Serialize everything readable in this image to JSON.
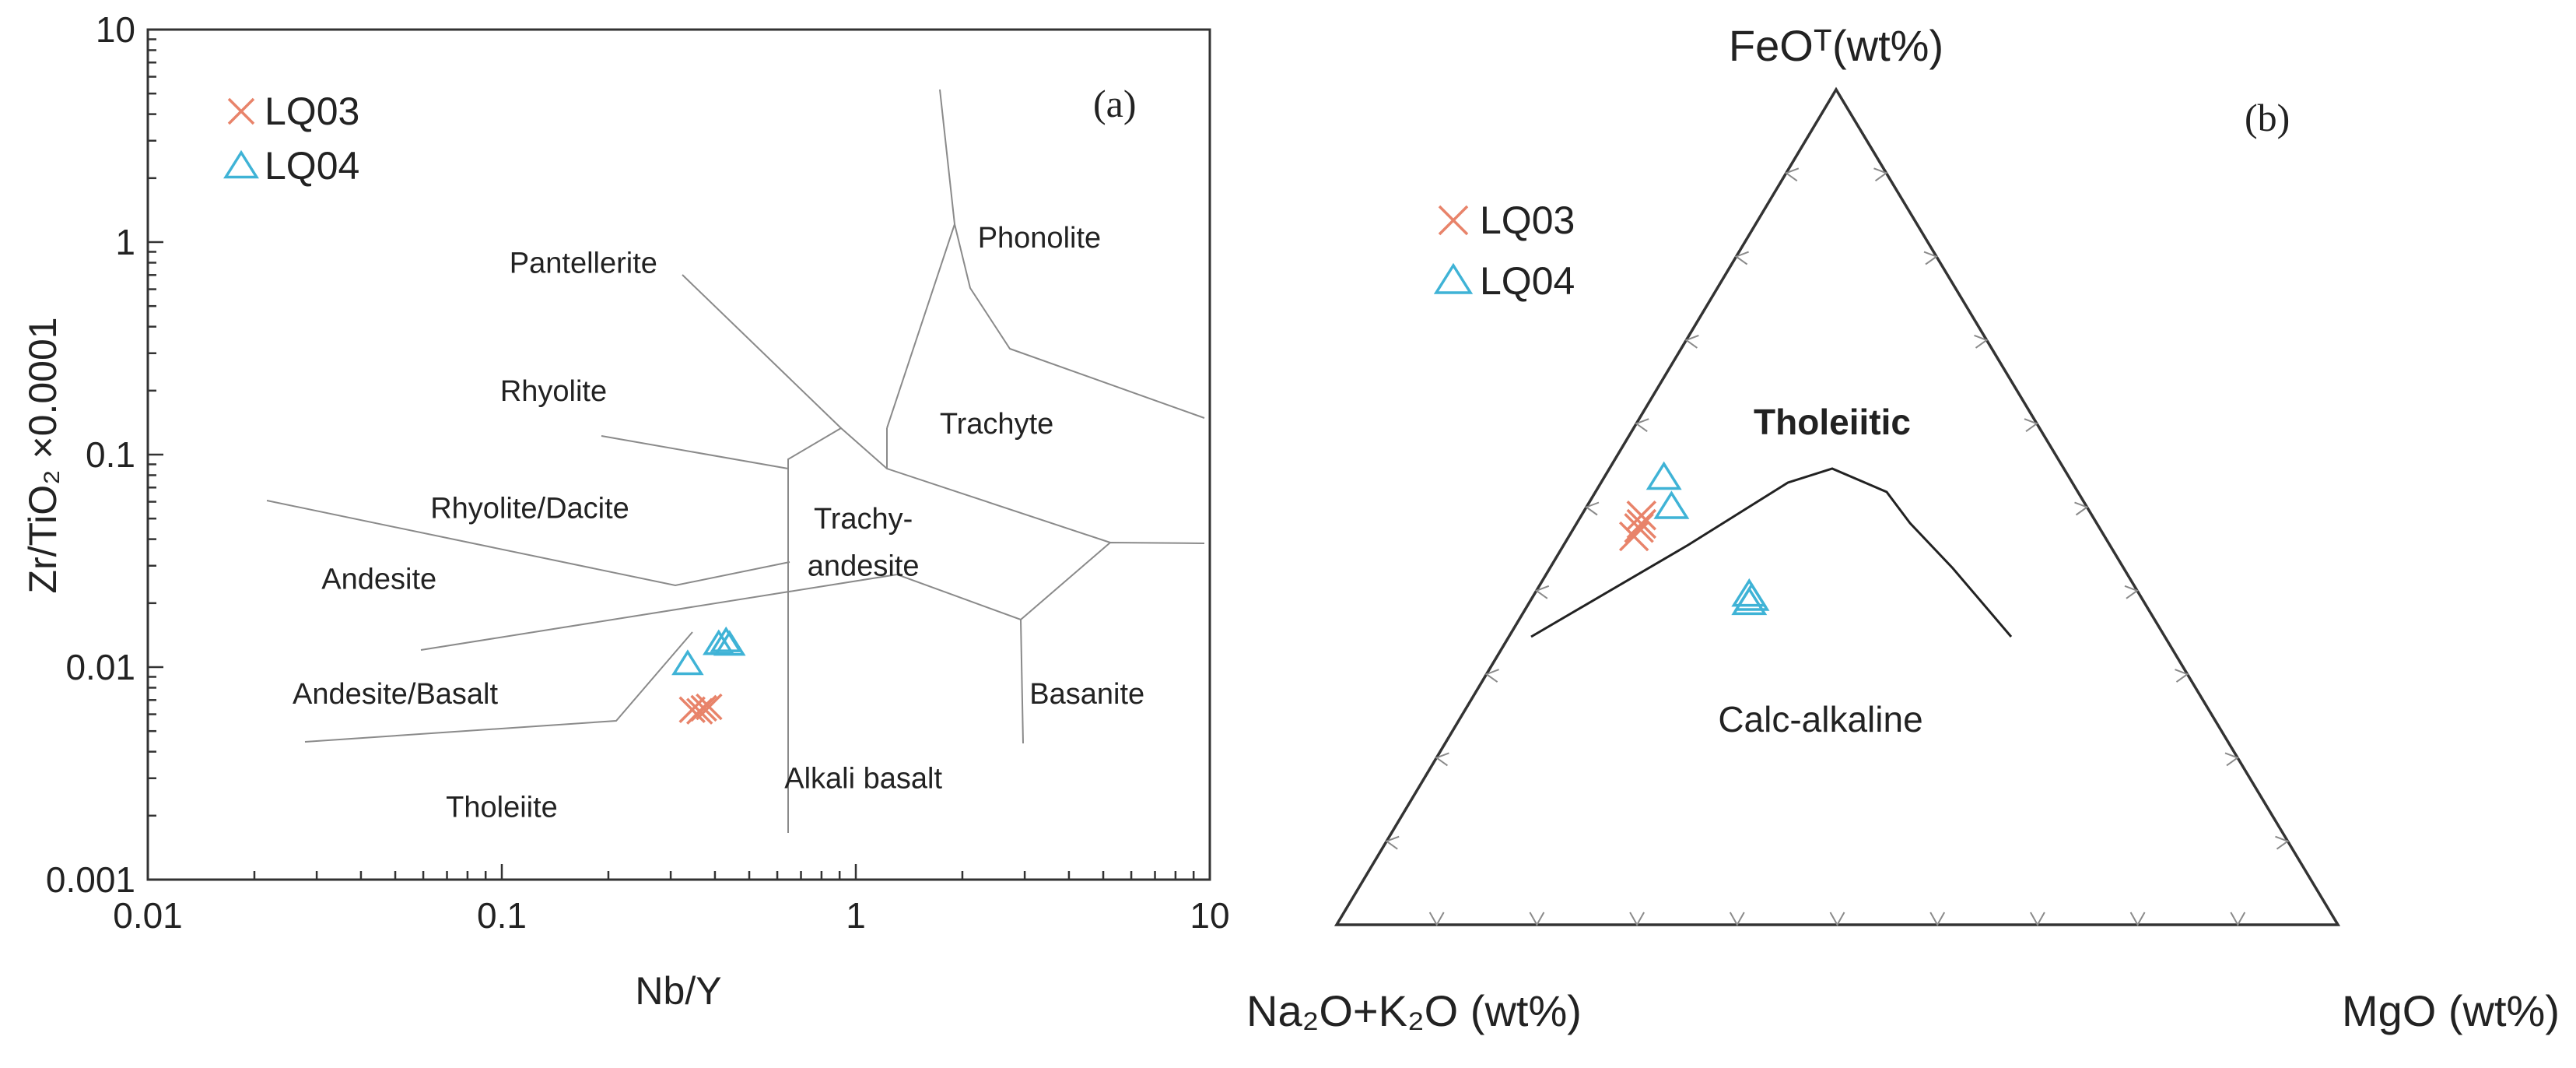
{
  "chart_data": [
    {
      "type": "scatter",
      "panel_label": "(a)",
      "xlabel": "Nb/Y",
      "ylabel": "Zr/TiO₂ ×0.0001",
      "xscale": "log",
      "yscale": "log",
      "xlim": [
        0.01,
        10
      ],
      "ylim": [
        0.001,
        10
      ],
      "x_tick_labels": [
        "0.01",
        "0.1",
        "1",
        "10"
      ],
      "y_tick_labels": [
        "0.001",
        "0.01",
        "0.1",
        "1",
        "10"
      ],
      "legend_position": "top-left",
      "fields": [
        {
          "name": "Pantellerite",
          "x": 0.17,
          "y": 0.8
        },
        {
          "name": "Phonolite",
          "x": 3.3,
          "y": 1.05
        },
        {
          "name": "Rhyolite",
          "x": 0.14,
          "y": 0.2
        },
        {
          "name": "Trachyte",
          "x": 2.5,
          "y": 0.14
        },
        {
          "name": "Rhyolite/Dacite",
          "x": 0.12,
          "y": 0.056
        },
        {
          "name": "Trachy-",
          "x": 1.05,
          "y": 0.05
        },
        {
          "name": "andesite",
          "x": 1.05,
          "y": 0.03
        },
        {
          "name": "Andesite",
          "x": 0.045,
          "y": 0.026
        },
        {
          "name": "Andesite/Basalt",
          "x": 0.05,
          "y": 0.0075
        },
        {
          "name": "Basanite",
          "x": 4.5,
          "y": 0.0075
        },
        {
          "name": "Alkali basalt",
          "x": 1.05,
          "y": 0.003
        },
        {
          "name": "Tholeiite",
          "x": 0.1,
          "y": 0.0022
        }
      ],
      "series": [
        {
          "name": "LQ03",
          "marker": "x",
          "color": "#e8836a",
          "points": [
            [
              0.345,
              0.0063
            ],
            [
              0.362,
              0.0062
            ],
            [
              0.372,
              0.0064
            ],
            [
              0.385,
              0.0065
            ]
          ]
        },
        {
          "name": "LQ04",
          "marker": "triangle",
          "color": "#3fb3d6",
          "points": [
            [
              0.335,
              0.0103
            ],
            [
              0.41,
              0.0128
            ],
            [
              0.43,
              0.0132
            ],
            [
              0.44,
              0.0127
            ]
          ]
        }
      ]
    },
    {
      "type": "ternary",
      "panel_label": "(b)",
      "vertex_labels": {
        "top": "FeOᵀ(wt%)",
        "left": "Na₂O+K₂O (wt%)",
        "right": "MgO (wt%)"
      },
      "fields": [
        "Tholeiitic",
        "Calc-alkaline"
      ],
      "legend_position": "top-left",
      "series": [
        {
          "name": "LQ03",
          "marker": "x",
          "color": "#e8836a",
          "points": [
            [
              0.465,
              0.47,
              0.065
            ],
            [
              0.48,
              0.455,
              0.065
            ],
            [
              0.49,
              0.45,
              0.06
            ],
            [
              0.475,
              0.46,
              0.065
            ]
          ]
        },
        {
          "name": "LQ04",
          "marker": "triangle",
          "color": "#3fb3d6",
          "points": [
            [
              0.5,
              0.415,
              0.085
            ],
            [
              0.535,
              0.405,
              0.06
            ],
            [
              0.395,
              0.39,
              0.215
            ],
            [
              0.39,
              0.39,
              0.22
            ],
            [
              0.385,
              0.395,
              0.22
            ]
          ]
        }
      ]
    }
  ]
}
